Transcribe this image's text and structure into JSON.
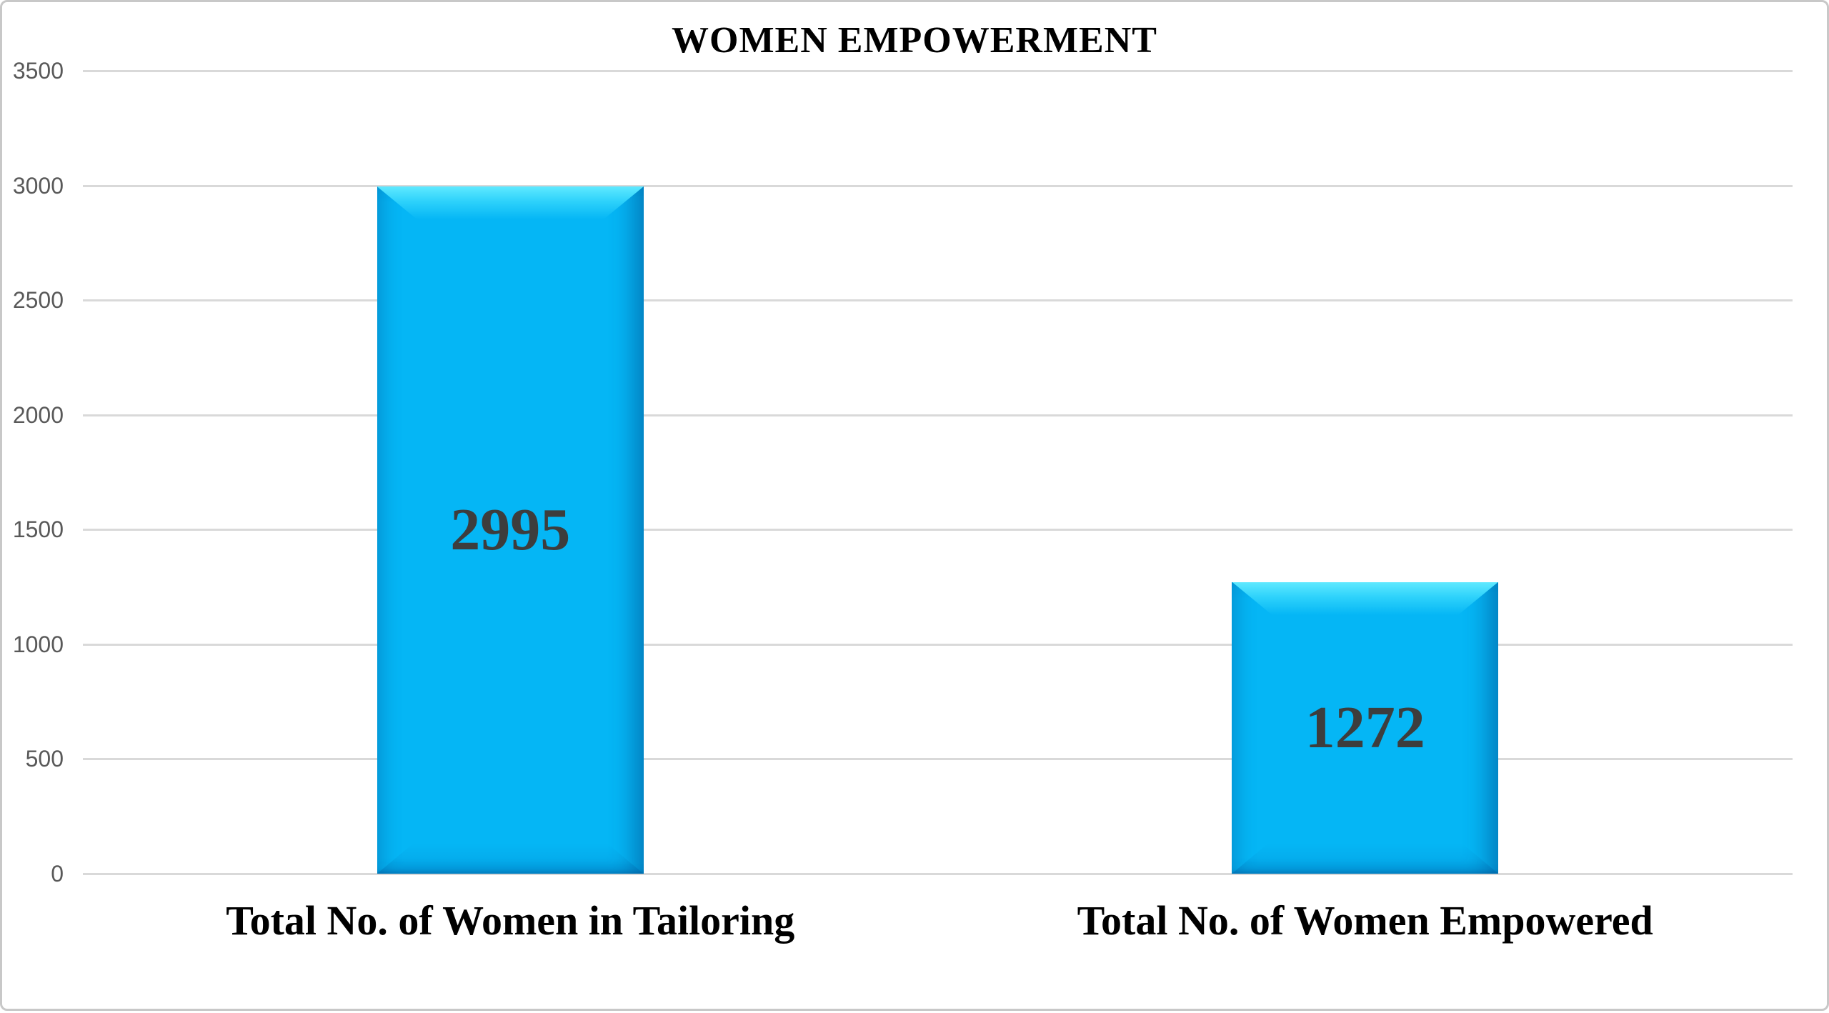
{
  "chart_data": {
    "type": "bar",
    "title": "WOMEN EMPOWERMENT",
    "categories": [
      "Total No. of Women in Tailoring",
      "Total No. of Women Empowered"
    ],
    "values": [
      2995,
      1272
    ],
    "data_labels": [
      "2995",
      "1272"
    ],
    "xlabel": "",
    "ylabel": "",
    "ylim": [
      0,
      3500
    ],
    "yticks": [
      0,
      500,
      1000,
      1500,
      2000,
      2500,
      3000,
      3500
    ],
    "grid": true,
    "legend": false,
    "label_position": "center",
    "colors": {
      "bar_fill": "#05B6F5",
      "bar_highlight": "#5FE9FF",
      "bar_edge_shadow": "#0082C8",
      "data_label": "#3D3D3D",
      "gridline": "#D9D9D9",
      "tick_label": "#595959",
      "title": "#000000",
      "category_label": "#000000",
      "frame_border": "#C8C8C8",
      "background": "#FFFFFF"
    }
  }
}
